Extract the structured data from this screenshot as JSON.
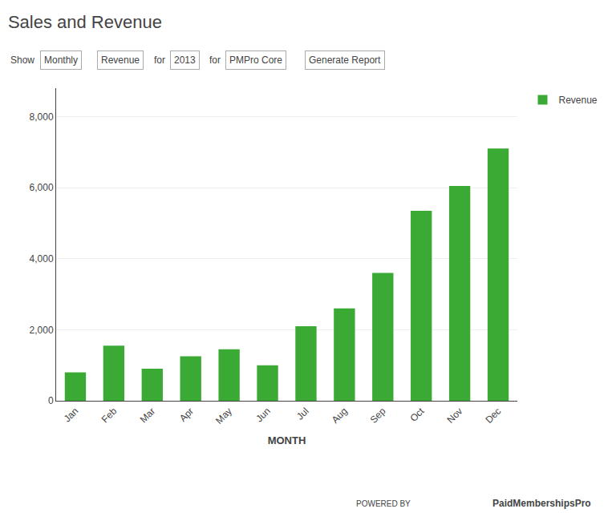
{
  "chart_data": {
    "type": "bar",
    "title": "Sales and Revenue",
    "categories": [
      "Jan",
      "Feb",
      "Mar",
      "Apr",
      "May",
      "Jun",
      "Jul",
      "Aug",
      "Sep",
      "Oct",
      "Nov",
      "Dec"
    ],
    "series": [
      {
        "name": "Revenue",
        "color": "#3aaa35",
        "values": [
          800,
          1550,
          900,
          1250,
          1450,
          1000,
          2100,
          2600,
          3600,
          5350,
          6050,
          7100
        ]
      }
    ],
    "xlabel": "MONTH",
    "ylim": [
      0,
      8800
    ],
    "yticks": [
      0,
      {
        "value": 2000,
        "label": "2,000"
      },
      {
        "value": 4000,
        "label": "4,000"
      },
      {
        "value": 6000,
        "label": "6,000"
      },
      {
        "value": 8000,
        "label": "8,000"
      }
    ],
    "grid": true,
    "legend": "upper right",
    "annotations": [
      "Show",
      "Monthly",
      "Revenue",
      "for",
      "2013",
      "for",
      "PMPro Core",
      "Generate Report",
      "POWERED BY",
      "PaidMembershipsPro"
    ]
  }
}
